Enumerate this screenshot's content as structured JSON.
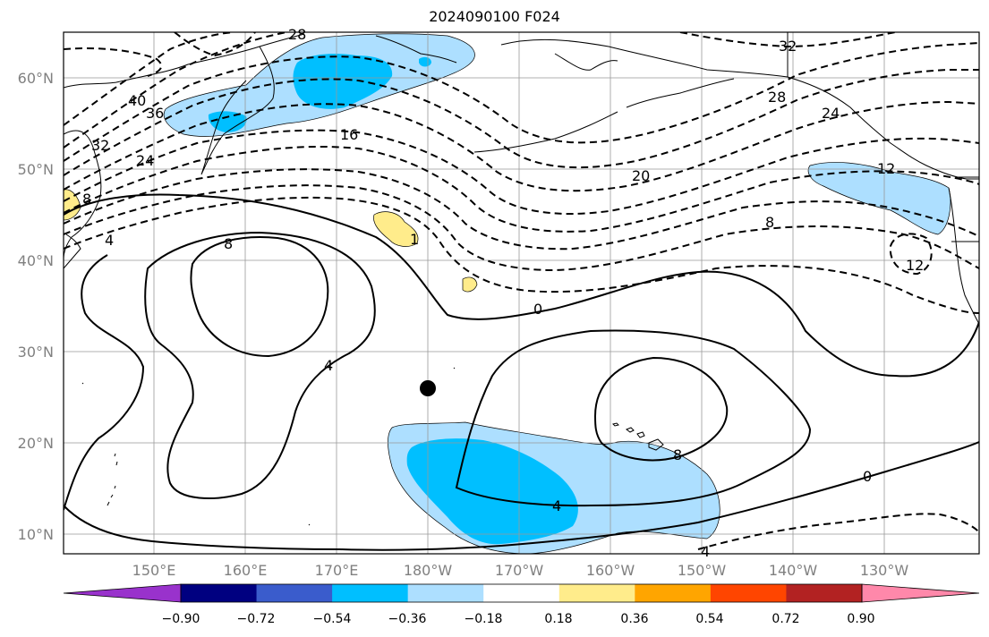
{
  "title": "2024090100 F024",
  "lat_ticks": [
    "60°N",
    "50°N",
    "40°N",
    "30°N",
    "20°N",
    "10°N"
  ],
  "lon_ticks": [
    "150°E",
    "160°E",
    "170°E",
    "180°W",
    "170°W",
    "160°W",
    "150°W",
    "140°W",
    "130°W"
  ],
  "colorbar": {
    "ticks": [
      "−0.90",
      "−0.72",
      "−0.54",
      "−0.36",
      "−0.18",
      "0.18",
      "0.36",
      "0.54",
      "0.72",
      "0.90"
    ],
    "colors": [
      "#9932CC",
      "#000080",
      "#3A5CCC",
      "#00BFFF",
      "#ADDFFF",
      "#FFFFFF",
      "#FFEC8B",
      "#FFA500",
      "#FF4500",
      "#B22222",
      "#FF88AA"
    ]
  },
  "contour_labels": {
    "c40": "40",
    "c36": "36",
    "c32a": "32",
    "c32b": "32",
    "c28a": "28",
    "c28b": "28",
    "c24a": "24",
    "c24b": "24",
    "c20": "20",
    "c16": "16",
    "c12a": "12",
    "c12b": "12",
    "c8a": "8",
    "c8b": "8",
    "c8c": "8",
    "c8d": "8",
    "c4a": "4",
    "c4b": "4",
    "c4c": "4",
    "c4d": "4",
    "c0a": "0",
    "c0b": "0",
    "c1": "1"
  },
  "marker": "storm-center"
}
